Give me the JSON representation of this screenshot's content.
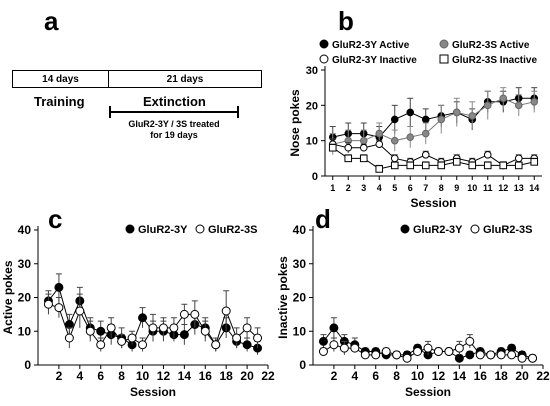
{
  "panel_a": {
    "letter": "a",
    "training_days": "14 days",
    "extinction_days": "21 days",
    "training_label": "Training",
    "extinction_label": "Extinction",
    "treatment_note": "GluR2-3Y / 3S treated\nfor 19 days"
  },
  "chart_data": [
    {
      "panel": "b",
      "type": "line",
      "ylabel": "Nose pokes",
      "xlabel": "Session",
      "xlim": [
        0.5,
        14.5
      ],
      "ylim": [
        0,
        30
      ],
      "xticks": [
        1,
        2,
        3,
        4,
        5,
        6,
        7,
        8,
        9,
        10,
        11,
        12,
        13,
        14
      ],
      "yticks": [
        0,
        10,
        20,
        30
      ],
      "legend_position": "top",
      "series": [
        {
          "name": "GluR2-3Y Active",
          "marker": "circle",
          "fill": "#000000",
          "line": "#000000",
          "x": [
            1,
            2,
            3,
            4,
            5,
            6,
            7,
            8,
            9,
            10,
            11,
            12,
            13,
            14
          ],
          "values": [
            11,
            12,
            12,
            11,
            16,
            18,
            16,
            17,
            18,
            16,
            21,
            21,
            22,
            22
          ],
          "errors": [
            3,
            3,
            3,
            3,
            4,
            4,
            3,
            3,
            3,
            3,
            3,
            3,
            3,
            3
          ]
        },
        {
          "name": "GluR2-3S Active",
          "marker": "circle",
          "fill": "#888888",
          "line": "#777777",
          "x": [
            1,
            2,
            3,
            4,
            5,
            6,
            7,
            8,
            9,
            10,
            11,
            12,
            13,
            14
          ],
          "values": [
            9,
            10,
            10,
            12,
            10,
            11,
            12,
            16,
            18,
            17,
            20,
            22,
            20,
            21
          ],
          "errors": [
            3,
            3,
            3,
            3,
            3,
            3,
            3,
            4,
            4,
            4,
            4,
            3,
            3,
            3
          ]
        },
        {
          "name": "GluR2-3Y Inactive",
          "marker": "circle",
          "fill": "#ffffff",
          "line": "#000000",
          "x": [
            1,
            2,
            3,
            4,
            5,
            6,
            7,
            8,
            9,
            10,
            11,
            12,
            13,
            14
          ],
          "values": [
            9,
            8,
            8,
            9,
            5,
            4,
            6,
            4,
            5,
            4,
            6,
            3,
            5,
            5
          ],
          "errors": [
            1.5,
            1.5,
            1,
            1,
            1,
            1,
            1,
            1,
            1,
            1,
            1,
            1,
            1,
            1
          ]
        },
        {
          "name": "GluR2-3S Inactive",
          "marker": "square",
          "fill": "#ffffff",
          "line": "#000000",
          "x": [
            1,
            2,
            3,
            4,
            5,
            6,
            7,
            8,
            9,
            10,
            11,
            12,
            13,
            14
          ],
          "values": [
            8,
            5,
            5,
            2,
            3,
            3,
            3,
            3,
            4,
            3,
            3,
            3,
            3,
            4
          ],
          "errors": [
            1,
            1,
            1,
            1,
            1,
            1,
            1,
            1,
            1,
            1,
            1,
            1,
            1,
            1
          ]
        }
      ]
    },
    {
      "panel": "c",
      "type": "line",
      "ylabel": "Active pokes",
      "xlabel": "Session",
      "xlim": [
        0,
        22
      ],
      "ylim": [
        0,
        40
      ],
      "xticks": [
        2,
        4,
        6,
        8,
        10,
        12,
        14,
        16,
        18,
        20,
        22
      ],
      "yticks": [
        0,
        10,
        20,
        30,
        40
      ],
      "legend_position": "top-right",
      "series": [
        {
          "name": "GluR2-3Y",
          "marker": "circle",
          "fill": "#000000",
          "line": "#000000",
          "x": [
            1,
            2,
            3,
            4,
            5,
            6,
            7,
            8,
            9,
            10,
            11,
            12,
            13,
            14,
            15,
            16,
            17,
            18,
            19,
            20,
            21
          ],
          "values": [
            19,
            23,
            12,
            19,
            11,
            10,
            9,
            8,
            6,
            14,
            10,
            10,
            9,
            9,
            12,
            11,
            6,
            11,
            7,
            6,
            5
          ],
          "errors": [
            3,
            4,
            3,
            4,
            3,
            3,
            3,
            3,
            2,
            3,
            3,
            3,
            2,
            3,
            3,
            3,
            2,
            3,
            2,
            2,
            2
          ]
        },
        {
          "name": "GluR2-3S",
          "marker": "circle",
          "fill": "#ffffff",
          "line": "#000000",
          "x": [
            1,
            2,
            3,
            4,
            5,
            6,
            7,
            8,
            9,
            10,
            11,
            12,
            13,
            14,
            15,
            16,
            17,
            18,
            19,
            20,
            21
          ],
          "values": [
            18,
            17,
            8,
            16,
            10,
            6,
            11,
            7,
            8,
            6,
            11,
            11,
            11,
            15,
            15,
            10,
            6,
            16,
            8,
            11,
            8
          ],
          "errors": [
            3,
            3,
            3,
            5,
            3,
            2,
            3,
            2,
            2,
            2,
            4,
            3,
            3,
            3,
            4,
            3,
            2,
            6,
            3,
            3,
            3
          ]
        }
      ]
    },
    {
      "panel": "d",
      "type": "line",
      "ylabel": "Inactive pokes",
      "xlabel": "Session",
      "xlim": [
        0,
        22
      ],
      "ylim": [
        0,
        40
      ],
      "xticks": [
        2,
        4,
        6,
        8,
        10,
        12,
        14,
        16,
        18,
        20,
        22
      ],
      "yticks": [
        0,
        10,
        20,
        30,
        40
      ],
      "legend_position": "top-right",
      "series": [
        {
          "name": "GluR2-3Y",
          "marker": "circle",
          "fill": "#000000",
          "line": "#000000",
          "x": [
            1,
            2,
            3,
            4,
            5,
            6,
            7,
            8,
            9,
            10,
            11,
            12,
            13,
            14,
            15,
            16,
            17,
            18,
            19,
            20,
            21
          ],
          "values": [
            7,
            11,
            7,
            6,
            4,
            4,
            3,
            3,
            3,
            5,
            3,
            4,
            4,
            2,
            3,
            4,
            3,
            4,
            5,
            3,
            2
          ],
          "errors": [
            2,
            3,
            2,
            2,
            1,
            1,
            1,
            1,
            1,
            1,
            1,
            1,
            1,
            1,
            1,
            1,
            1,
            1,
            1,
            1,
            1
          ]
        },
        {
          "name": "GluR2-3S",
          "marker": "circle",
          "fill": "#ffffff",
          "line": "#000000",
          "x": [
            1,
            2,
            3,
            4,
            5,
            6,
            7,
            8,
            9,
            10,
            11,
            12,
            13,
            14,
            15,
            16,
            17,
            18,
            19,
            20,
            21
          ],
          "values": [
            4,
            6,
            5,
            5,
            3,
            3,
            4,
            3,
            2,
            4,
            5,
            4,
            4,
            5,
            7,
            3,
            3,
            3,
            3,
            2,
            2
          ],
          "errors": [
            1,
            2,
            2,
            1,
            1,
            1,
            1,
            1,
            1,
            1,
            2,
            1,
            1,
            2,
            2,
            1,
            1,
            1,
            1,
            1,
            1
          ]
        }
      ]
    }
  ]
}
